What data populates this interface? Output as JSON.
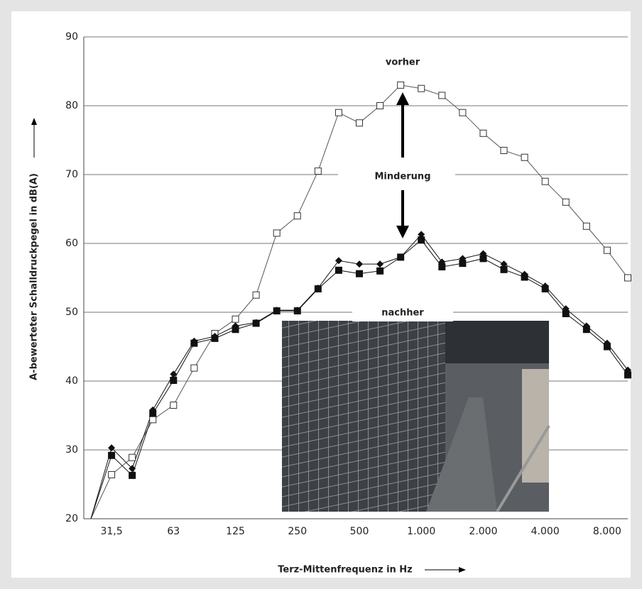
{
  "chart_data": {
    "type": "line",
    "x_label": "Terz-Mittenfrequenz in Hz",
    "y_label": "A-bewerteter Schalldruckpegel in dB(A)",
    "categories": [
      null,
      "31,5",
      null,
      null,
      "63",
      null,
      null,
      "125",
      null,
      null,
      "250",
      null,
      null,
      "500",
      null,
      null,
      "1.000",
      null,
      null,
      "2.000",
      null,
      null,
      "4.000",
      null,
      null,
      "8.000",
      null
    ],
    "series": [
      {
        "color": "#555555",
        "marker": "square-open",
        "values": [
          20,
          26.4,
          28.9,
          34.4,
          36.5,
          41.9,
          46.9,
          49,
          52.5,
          61.5,
          64,
          70.5,
          79,
          77.5,
          80,
          83,
          82.5,
          81.5,
          79,
          76,
          73.5,
          72.5,
          69,
          66,
          62.5,
          59,
          55
        ]
      },
      {
        "color": "#111111",
        "marker": "diamond",
        "values": [
          20,
          30.3,
          27.3,
          35.8,
          41,
          45.8,
          46.5,
          48,
          48.5,
          50.3,
          50.3,
          53.5,
          57.5,
          57,
          57,
          58,
          61.3,
          57.3,
          57.8,
          58.5,
          57,
          55.5,
          53.8,
          50.5,
          48,
          45.5,
          41.6
        ]
      },
      {
        "color": "#111111",
        "marker": "square-filled",
        "values": [
          20,
          29.2,
          26.3,
          35.3,
          40.1,
          45.5,
          46.2,
          47.5,
          48.4,
          50.2,
          50.2,
          53.4,
          56.1,
          55.6,
          56,
          58,
          60.5,
          56.6,
          57.1,
          57.8,
          56.2,
          55.1,
          53.4,
          49.8,
          47.5,
          45,
          40.9
        ]
      }
    ],
    "annotations": [
      "vorher",
      "Minderung",
      "nachher"
    ],
    "ylim": [
      20,
      90
    ],
    "yticks": [
      20,
      30,
      40,
      50,
      60,
      70,
      80,
      90
    ],
    "grid": true
  }
}
